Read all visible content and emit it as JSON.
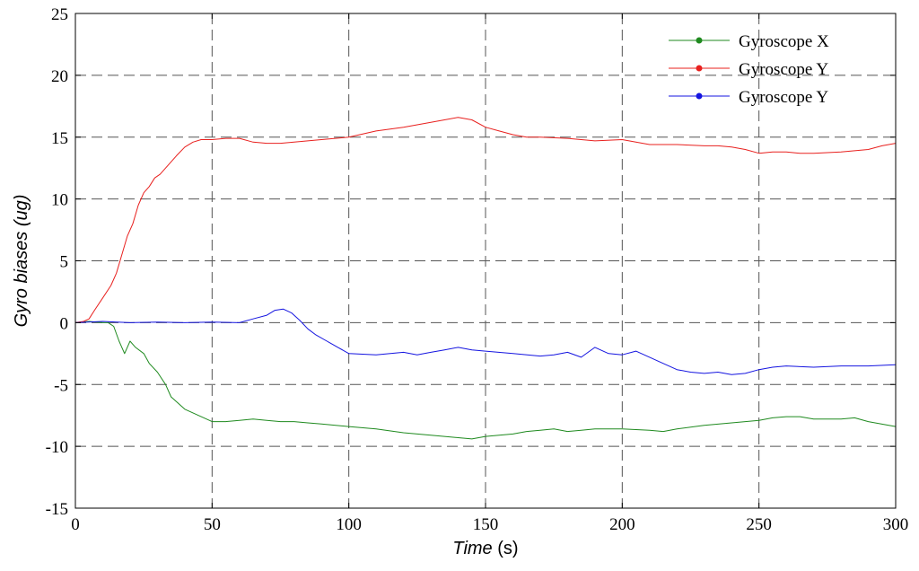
{
  "chart_data": {
    "type": "line",
    "xlabel": "Time",
    "xlabel_unit": "(s)",
    "ylabel": "Gyro biases (ug)",
    "xlim": [
      0,
      300
    ],
    "ylim": [
      -15,
      25
    ],
    "xticks": [
      0,
      50,
      100,
      150,
      200,
      250,
      300
    ],
    "yticks": [
      -15,
      -10,
      -5,
      0,
      5,
      10,
      15,
      20,
      25
    ],
    "grid": true,
    "legend_position": "top-right",
    "series": [
      {
        "name": "Gyroscope X",
        "color": "#1f8a1f",
        "points": [
          [
            0,
            0
          ],
          [
            5,
            0.1
          ],
          [
            10,
            0
          ],
          [
            12,
            0
          ],
          [
            14,
            -0.3
          ],
          [
            16,
            -1.5
          ],
          [
            18,
            -2.5
          ],
          [
            20,
            -1.5
          ],
          [
            22,
            -2
          ],
          [
            25,
            -2.5
          ],
          [
            27,
            -3.3
          ],
          [
            30,
            -4
          ],
          [
            33,
            -5
          ],
          [
            35,
            -6
          ],
          [
            40,
            -7
          ],
          [
            45,
            -7.5
          ],
          [
            50,
            -8
          ],
          [
            55,
            -8
          ],
          [
            60,
            -7.9
          ],
          [
            65,
            -7.8
          ],
          [
            70,
            -7.9
          ],
          [
            75,
            -8
          ],
          [
            80,
            -8
          ],
          [
            85,
            -8.1
          ],
          [
            90,
            -8.2
          ],
          [
            100,
            -8.4
          ],
          [
            110,
            -8.6
          ],
          [
            120,
            -8.9
          ],
          [
            130,
            -9.1
          ],
          [
            140,
            -9.3
          ],
          [
            145,
            -9.4
          ],
          [
            150,
            -9.2
          ],
          [
            155,
            -9.1
          ],
          [
            160,
            -9
          ],
          [
            165,
            -8.8
          ],
          [
            170,
            -8.7
          ],
          [
            175,
            -8.6
          ],
          [
            180,
            -8.8
          ],
          [
            185,
            -8.7
          ],
          [
            190,
            -8.6
          ],
          [
            200,
            -8.6
          ],
          [
            210,
            -8.7
          ],
          [
            215,
            -8.8
          ],
          [
            220,
            -8.6
          ],
          [
            230,
            -8.3
          ],
          [
            240,
            -8.1
          ],
          [
            250,
            -7.9
          ],
          [
            255,
            -7.7
          ],
          [
            260,
            -7.6
          ],
          [
            265,
            -7.6
          ],
          [
            270,
            -7.8
          ],
          [
            280,
            -7.8
          ],
          [
            285,
            -7.7
          ],
          [
            290,
            -8
          ],
          [
            300,
            -8.4
          ]
        ]
      },
      {
        "name": "Gyroscope Y",
        "color": "#e8201e",
        "points": [
          [
            0,
            0
          ],
          [
            3,
            0.1
          ],
          [
            5,
            0.3
          ],
          [
            7,
            1
          ],
          [
            10,
            2
          ],
          [
            13,
            3
          ],
          [
            15,
            4
          ],
          [
            17,
            5.5
          ],
          [
            19,
            7
          ],
          [
            21,
            8
          ],
          [
            23,
            9.5
          ],
          [
            25,
            10.5
          ],
          [
            27,
            11
          ],
          [
            29,
            11.7
          ],
          [
            31,
            12
          ],
          [
            33,
            12.5
          ],
          [
            35,
            13
          ],
          [
            37,
            13.5
          ],
          [
            40,
            14.2
          ],
          [
            43,
            14.6
          ],
          [
            46,
            14.8
          ],
          [
            50,
            14.8
          ],
          [
            55,
            14.9
          ],
          [
            60,
            14.9
          ],
          [
            65,
            14.6
          ],
          [
            70,
            14.5
          ],
          [
            75,
            14.5
          ],
          [
            80,
            14.6
          ],
          [
            90,
            14.8
          ],
          [
            100,
            15
          ],
          [
            110,
            15.5
          ],
          [
            120,
            15.8
          ],
          [
            130,
            16.2
          ],
          [
            135,
            16.4
          ],
          [
            140,
            16.6
          ],
          [
            145,
            16.4
          ],
          [
            150,
            15.8
          ],
          [
            155,
            15.5
          ],
          [
            160,
            15.2
          ],
          [
            165,
            15
          ],
          [
            170,
            15
          ],
          [
            180,
            14.9
          ],
          [
            190,
            14.7
          ],
          [
            200,
            14.8
          ],
          [
            210,
            14.4
          ],
          [
            220,
            14.4
          ],
          [
            230,
            14.3
          ],
          [
            235,
            14.3
          ],
          [
            240,
            14.2
          ],
          [
            245,
            14
          ],
          [
            250,
            13.7
          ],
          [
            255,
            13.8
          ],
          [
            260,
            13.8
          ],
          [
            265,
            13.7
          ],
          [
            270,
            13.7
          ],
          [
            280,
            13.8
          ],
          [
            290,
            14
          ],
          [
            295,
            14.3
          ],
          [
            300,
            14.5
          ]
        ]
      },
      {
        "name": "Gyroscope Y",
        "color": "#1414e0",
        "points": [
          [
            0,
            0
          ],
          [
            10,
            0.1
          ],
          [
            20,
            0
          ],
          [
            30,
            0.05
          ],
          [
            40,
            0
          ],
          [
            50,
            0.05
          ],
          [
            60,
            0
          ],
          [
            65,
            0.3
          ],
          [
            70,
            0.6
          ],
          [
            73,
            1
          ],
          [
            76,
            1.1
          ],
          [
            79,
            0.8
          ],
          [
            82,
            0.2
          ],
          [
            85,
            -0.5
          ],
          [
            88,
            -1
          ],
          [
            92,
            -1.5
          ],
          [
            96,
            -2
          ],
          [
            100,
            -2.5
          ],
          [
            110,
            -2.6
          ],
          [
            120,
            -2.4
          ],
          [
            125,
            -2.6
          ],
          [
            130,
            -2.4
          ],
          [
            135,
            -2.2
          ],
          [
            140,
            -2
          ],
          [
            145,
            -2.2
          ],
          [
            150,
            -2.3
          ],
          [
            160,
            -2.5
          ],
          [
            170,
            -2.7
          ],
          [
            175,
            -2.6
          ],
          [
            180,
            -2.4
          ],
          [
            185,
            -2.8
          ],
          [
            190,
            -2
          ],
          [
            195,
            -2.5
          ],
          [
            200,
            -2.6
          ],
          [
            205,
            -2.3
          ],
          [
            210,
            -2.8
          ],
          [
            215,
            -3.3
          ],
          [
            220,
            -3.8
          ],
          [
            225,
            -4
          ],
          [
            230,
            -4.1
          ],
          [
            235,
            -4
          ],
          [
            240,
            -4.2
          ],
          [
            245,
            -4.1
          ],
          [
            250,
            -3.8
          ],
          [
            255,
            -3.6
          ],
          [
            260,
            -3.5
          ],
          [
            270,
            -3.6
          ],
          [
            280,
            -3.5
          ],
          [
            290,
            -3.5
          ],
          [
            300,
            -3.4
          ]
        ]
      }
    ]
  }
}
